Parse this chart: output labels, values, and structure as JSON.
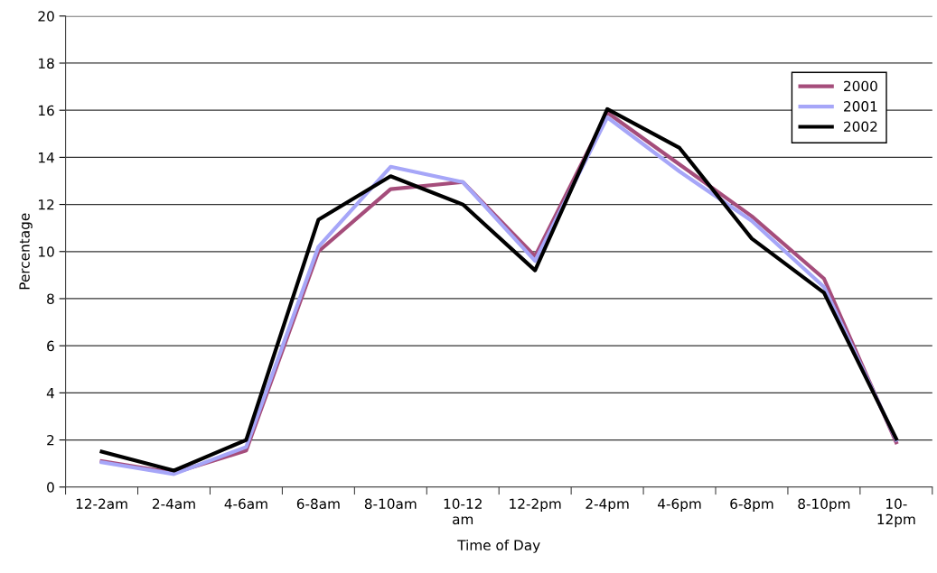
{
  "chart_data": {
    "type": "line",
    "xlabel": "Time of Day",
    "ylabel": "Percentage",
    "categories": [
      "12-2am",
      "2-4am",
      "4-6am",
      "6-8am",
      "8-10am",
      "10-12\nam",
      "12-2pm",
      "2-4pm",
      "4-6pm",
      "6-8pm",
      "8-10pm",
      "10-\n12pm"
    ],
    "series": [
      {
        "name": "2000",
        "color": "#a54d7b",
        "values": [
          1.1,
          0.6,
          1.55,
          10.0,
          12.65,
          12.95,
          9.8,
          15.9,
          13.7,
          11.5,
          8.85,
          1.9
        ]
      },
      {
        "name": "2001",
        "color": "#a6a6f8",
        "values": [
          1.05,
          0.55,
          1.7,
          10.2,
          13.6,
          12.95,
          9.6,
          15.7,
          13.4,
          11.3,
          8.5,
          2.0
        ]
      },
      {
        "name": "2002",
        "color": "#000000",
        "values": [
          1.5,
          0.7,
          2.0,
          11.35,
          13.2,
          12.0,
          9.2,
          16.05,
          14.4,
          10.55,
          8.25,
          2.05
        ]
      }
    ],
    "ylim": [
      0,
      20
    ],
    "yticks": [
      0,
      2,
      4,
      6,
      8,
      10,
      12,
      14,
      16,
      18,
      20
    ],
    "grid": "y",
    "legend": "top right",
    "marker": "none",
    "line_style": "solid"
  }
}
